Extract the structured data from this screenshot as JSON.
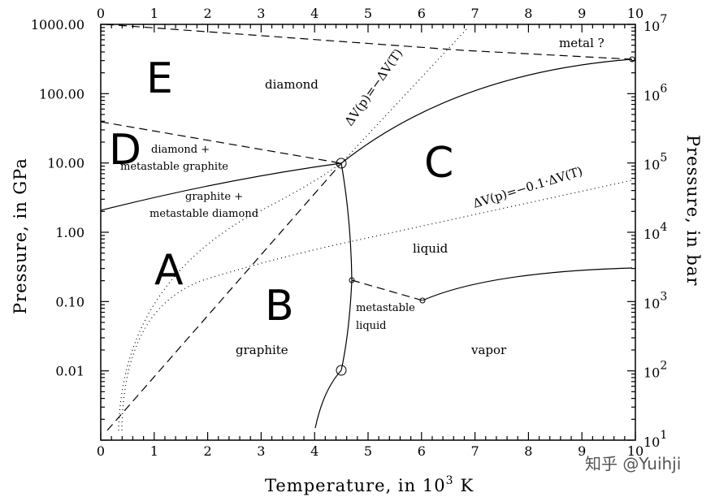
{
  "axes": {
    "bottom_ticks": [
      "0",
      "1",
      "2",
      "3",
      "4",
      "5",
      "6",
      "7",
      "8",
      "9",
      "10"
    ],
    "top_ticks": [
      "0",
      "1",
      "2",
      "3",
      "4",
      "5",
      "6",
      "7",
      "8",
      "9",
      "10"
    ],
    "left_ticks": [
      "1000.00",
      "100.00",
      "10.00",
      "1.00",
      "0.10",
      "0.01"
    ],
    "right_ticks": [
      {
        "base": "10",
        "exp": "7"
      },
      {
        "base": "10",
        "exp": "6"
      },
      {
        "base": "10",
        "exp": "5"
      },
      {
        "base": "10",
        "exp": "4"
      },
      {
        "base": "10",
        "exp": "3"
      },
      {
        "base": "10",
        "exp": "2"
      },
      {
        "base": "10",
        "exp": "1"
      }
    ],
    "x_title": {
      "text": "Temperature, in 10",
      "sup": "3",
      "unit": "K"
    },
    "y_title": "Pressure, in GPa",
    "y2_title": "Pressure, in bar"
  },
  "regions": {
    "E": "E",
    "D": "D",
    "C": "C",
    "A": "A",
    "B": "B"
  },
  "labels": {
    "metal": "metal ?",
    "diamond": "diamond",
    "diamond_graphite_1": "diamond +",
    "diamond_graphite_2": "metastable graphite",
    "graphite_diamond_1": "graphite +",
    "graphite_diamond_2": "metastable diamond",
    "liquid": "liquid",
    "metastable_liquid_1": "metastable",
    "metastable_liquid_2": "liquid",
    "graphite": "graphite",
    "vapor": "vapor",
    "dv1": "ΔV(p)=−ΔV(T)",
    "dv2": "ΔV(p)=−0.1·ΔV(T)"
  },
  "watermark": "知乎 @Yuihji"
}
